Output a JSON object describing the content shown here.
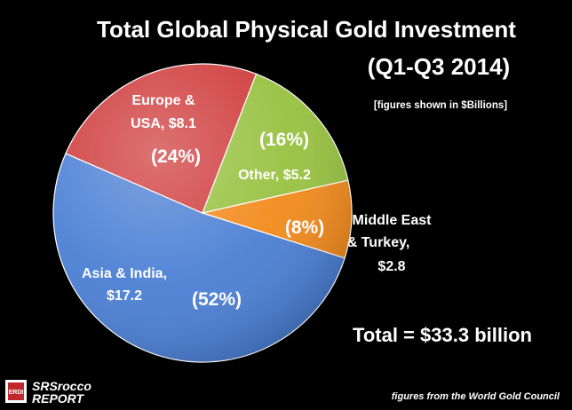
{
  "chart_data": {
    "type": "pie",
    "title": "Total Global Physical Gold Investment",
    "subtitle": "(Q1-Q3 2014)",
    "note": "[figures shown in $Billions]",
    "unit": "$Billions",
    "slices": [
      {
        "label_lines": [
          "Asia & India,",
          "$17.2"
        ],
        "value": 17.2,
        "percent_label": "(52%)",
        "color": "#4a7fd4"
      },
      {
        "label_lines": [
          "Europe &",
          "USA, $8.1"
        ],
        "value": 8.1,
        "percent_label": "(24%)",
        "color": "#cf3b3b"
      },
      {
        "label_lines": [
          "Other, $5.2"
        ],
        "value": 5.2,
        "percent_label": "(16%)",
        "color": "#97c13f"
      },
      {
        "label_lines": [
          "Middle East",
          "& Turkey,",
          "$2.8"
        ],
        "value": 2.8,
        "percent_label": "(8%)",
        "color": "#f28a1b"
      }
    ],
    "total_label": "Total = $33.3 billion"
  },
  "footer": {
    "source": "figures from the  World Gold Council",
    "logo_top": "SRSrocco",
    "logo_bottom": "REPORT",
    "logo_badge": "ERDI"
  }
}
